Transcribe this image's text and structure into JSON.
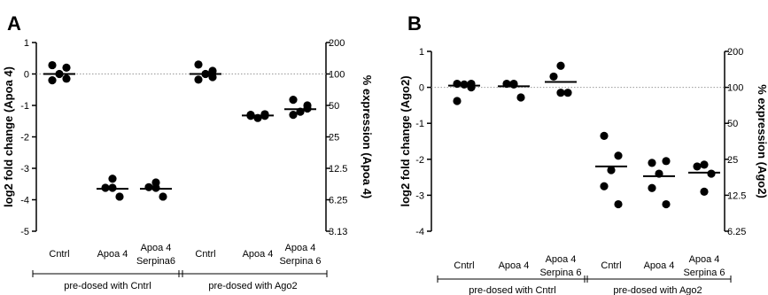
{
  "chart_data": [
    {
      "type": "scatter",
      "panel_label": "A",
      "ylabel": "log2 fold change (Apoa 4)",
      "y2label": "% expression (Apoa 4)",
      "ylim": [
        -5,
        1
      ],
      "yticks": [
        1,
        0,
        -1,
        -2,
        -3,
        -4,
        -5
      ],
      "y2_ticks": [
        {
          "label": "200",
          "log2": 1
        },
        {
          "label": "100",
          "log2": 0
        },
        {
          "label": "50",
          "log2": -1
        },
        {
          "label": "25",
          "log2": -2
        },
        {
          "label": "12.5",
          "log2": -3
        },
        {
          "label": "6.25",
          "log2": -4
        },
        {
          "label": "3.13",
          "log2": -5
        }
      ],
      "reference_line": 0,
      "categories": [
        [
          "Cntrl"
        ],
        [
          "Apoa 4"
        ],
        [
          "Apoa 4",
          "Serpina6"
        ],
        [
          "Cntrl"
        ],
        [
          "Apoa 4"
        ],
        [
          "Apoa 4",
          "Serpina 6"
        ]
      ],
      "groups": [
        {
          "label": "pre-dosed with Cntrl",
          "categories": [
            0,
            1,
            2
          ]
        },
        {
          "label": "pre-dosed with Ago2",
          "categories": [
            3,
            4,
            5
          ]
        }
      ],
      "points": [
        [
          0.28,
          0.2,
          0.0,
          -0.2,
          -0.15
        ],
        [
          -3.33,
          -3.62,
          -3.9,
          -3.62
        ],
        [
          -3.45,
          -3.6,
          -3.9,
          -3.62
        ],
        [
          0.3,
          0.1,
          0.0,
          -0.18,
          -0.1
        ],
        [
          -1.3,
          -1.33,
          -1.4,
          -1.33,
          -1.28
        ],
        [
          -0.82,
          -1.0,
          -1.2,
          -1.3,
          -1.1
        ]
      ],
      "means": [
        0.0,
        -3.65,
        -3.65,
        0.0,
        -1.32,
        -1.12
      ]
    },
    {
      "type": "scatter",
      "panel_label": "B",
      "ylabel": "log2 fold change (Ago2)",
      "y2label": "% expression (Ago2)",
      "ylim": [
        -4,
        1
      ],
      "yticks": [
        1,
        0,
        -1,
        -2,
        -3,
        -4
      ],
      "y2_ticks": [
        {
          "label": "200",
          "log2": 1
        },
        {
          "label": "100",
          "log2": 0
        },
        {
          "label": "50",
          "log2": -1
        },
        {
          "label": "25",
          "log2": -2
        },
        {
          "label": "12.5",
          "log2": -3
        },
        {
          "label": "6.25",
          "log2": -4
        }
      ],
      "reference_line": 0,
      "categories": [
        [
          "Cntrl"
        ],
        [
          "Apoa 4"
        ],
        [
          "Apoa 4",
          "Serpina 6"
        ],
        [
          "Cntrl"
        ],
        [
          "Apoa 4"
        ],
        [
          "Apoa 4",
          "Serpina 6"
        ]
      ],
      "groups": [
        {
          "label": "pre-dosed with Cntrl",
          "categories": [
            0,
            1,
            2
          ]
        },
        {
          "label": "pre-dosed with Ago2",
          "categories": [
            3,
            4,
            5
          ]
        }
      ],
      "points": [
        [
          0.1,
          0.0,
          0.08,
          -0.38,
          0.1
        ],
        [
          0.1,
          0.1,
          -0.28,
          0.08
        ],
        [
          0.6,
          0.3,
          -0.15,
          -0.15
        ],
        [
          -1.35,
          -1.9,
          -2.3,
          -2.75,
          -3.25
        ],
        [
          -2.1,
          -2.05,
          -2.4,
          -2.8,
          -3.25
        ],
        [
          -2.15,
          -2.2,
          -2.4,
          -2.9
        ]
      ],
      "means": [
        0.05,
        0.03,
        0.15,
        -2.2,
        -2.47,
        -2.37
      ]
    }
  ]
}
